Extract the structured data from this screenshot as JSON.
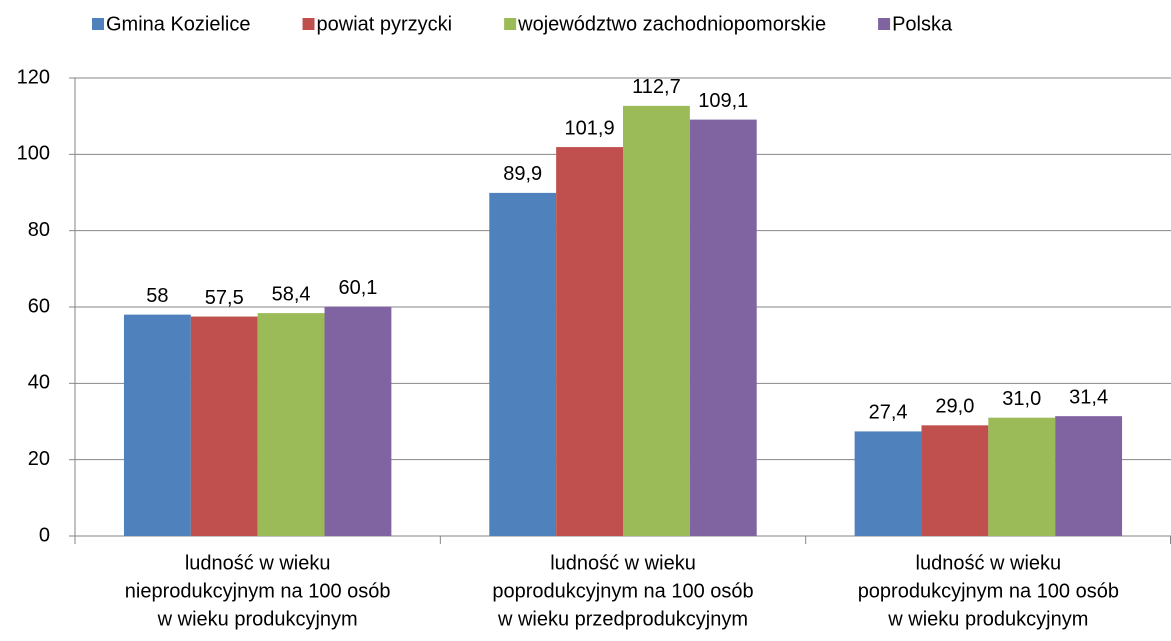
{
  "chart_data": {
    "type": "bar",
    "categories": [
      [
        "ludność w wieku",
        "nieprodukcyjnym na 100 osób",
        "w wieku produkcyjnym"
      ],
      [
        "ludność w wieku",
        "poprodukcyjnym na 100 osób",
        "w wieku przedprodukcyjnym"
      ],
      [
        "ludność w wieku",
        "poprodukcyjnym na 100 osób",
        "w wieku produkcyjnym"
      ]
    ],
    "series": [
      {
        "name": "Gmina Kozielice",
        "color": "#4f81bd",
        "values": [
          58,
          89.9,
          27.4
        ],
        "value_labels": [
          "58",
          "89,9",
          "27,4"
        ]
      },
      {
        "name": "powiat pyrzycki",
        "color": "#c0504d",
        "values": [
          57.5,
          101.9,
          29.0
        ],
        "value_labels": [
          "57,5",
          "101,9",
          "29,0"
        ]
      },
      {
        "name": "województwo zachodniopomorskie",
        "color": "#9bbb59",
        "values": [
          58.4,
          112.7,
          31.0
        ],
        "value_labels": [
          "58,4",
          "112,7",
          "31,0"
        ]
      },
      {
        "name": "Polska",
        "color": "#8064a2",
        "values": [
          60.1,
          109.1,
          31.4
        ],
        "value_labels": [
          "60,1",
          "109,1",
          "31,4"
        ]
      }
    ],
    "ylim": [
      0,
      120
    ],
    "yticks": [
      0,
      20,
      40,
      60,
      80,
      100,
      120
    ],
    "grid": true,
    "legend": "top"
  }
}
